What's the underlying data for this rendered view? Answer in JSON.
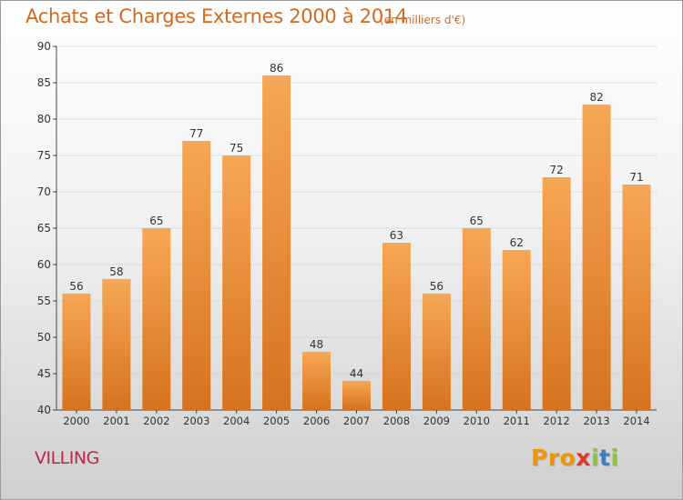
{
  "header": {
    "title": "Achats et Charges Externes 2000 à 2014",
    "unit": "(en milliers d'€)"
  },
  "footer": {
    "commune": "VILLING",
    "logo_text": "Proxiti"
  },
  "colors": {
    "title": "#d2691e",
    "bar_top": "#f7a755",
    "bar_bottom": "#d6721f",
    "commune": "#c0254a"
  },
  "chart_data": {
    "type": "bar",
    "title": "Achats et Charges Externes 2000 à 2014",
    "subtitle": "(en milliers d'€)",
    "xlabel": "",
    "ylabel": "",
    "categories": [
      "2000",
      "2001",
      "2002",
      "2003",
      "2004",
      "2005",
      "2006",
      "2007",
      "2008",
      "2009",
      "2010",
      "2011",
      "2012",
      "2013",
      "2014"
    ],
    "values": [
      56,
      58,
      65,
      77,
      75,
      86,
      48,
      44,
      63,
      56,
      65,
      62,
      72,
      82,
      71
    ],
    "ylim": [
      40,
      90
    ],
    "yticks": [
      40,
      45,
      50,
      55,
      60,
      65,
      70,
      75,
      80,
      85,
      90
    ],
    "grid": true,
    "data_labels": true
  }
}
